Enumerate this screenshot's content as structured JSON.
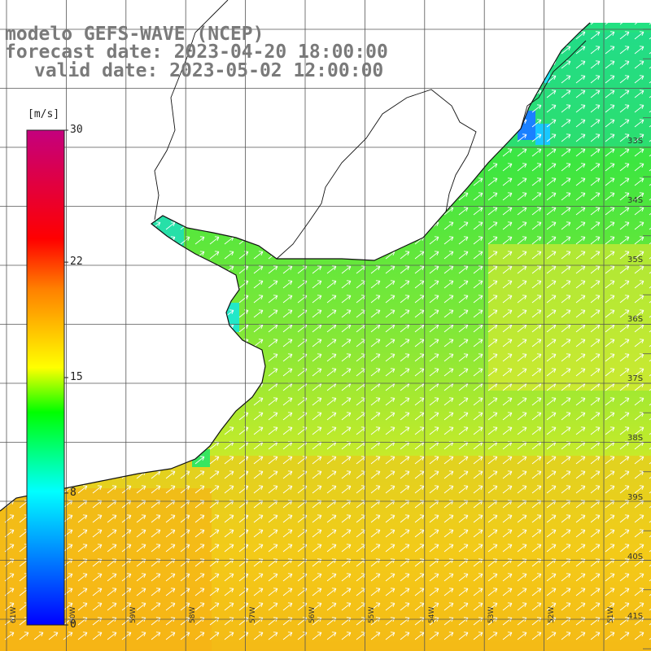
{
  "title": {
    "line1": "modelo GEFS-WAVE (NCEP)",
    "line2": "forecast date: 2023-04-20 18:00:00",
    "line3": "valid date: 2023-05-02 12:00:00"
  },
  "colorbar": {
    "units": "[m/s]",
    "ticks": [
      "30",
      "22",
      "15",
      "8",
      "0"
    ],
    "tick_values": [
      30,
      22,
      15,
      8,
      0
    ],
    "colors": [
      "#0000ff",
      "#00ffff",
      "#00ff00",
      "#ffff00",
      "#ff7f00",
      "#ff0000",
      "#c4007e"
    ]
  },
  "map": {
    "lon_labels": [
      "61W",
      "60W",
      "59W",
      "58W",
      "57W",
      "56W",
      "55W",
      "54W",
      "53W",
      "52W",
      "51W"
    ],
    "lat_labels": [
      "33S",
      "34S",
      "35S",
      "36S",
      "37S",
      "38S",
      "39S",
      "40S",
      "41S"
    ],
    "land_color": "#ffffff",
    "field": "wind speed",
    "wind_direction": "from southwest"
  }
}
